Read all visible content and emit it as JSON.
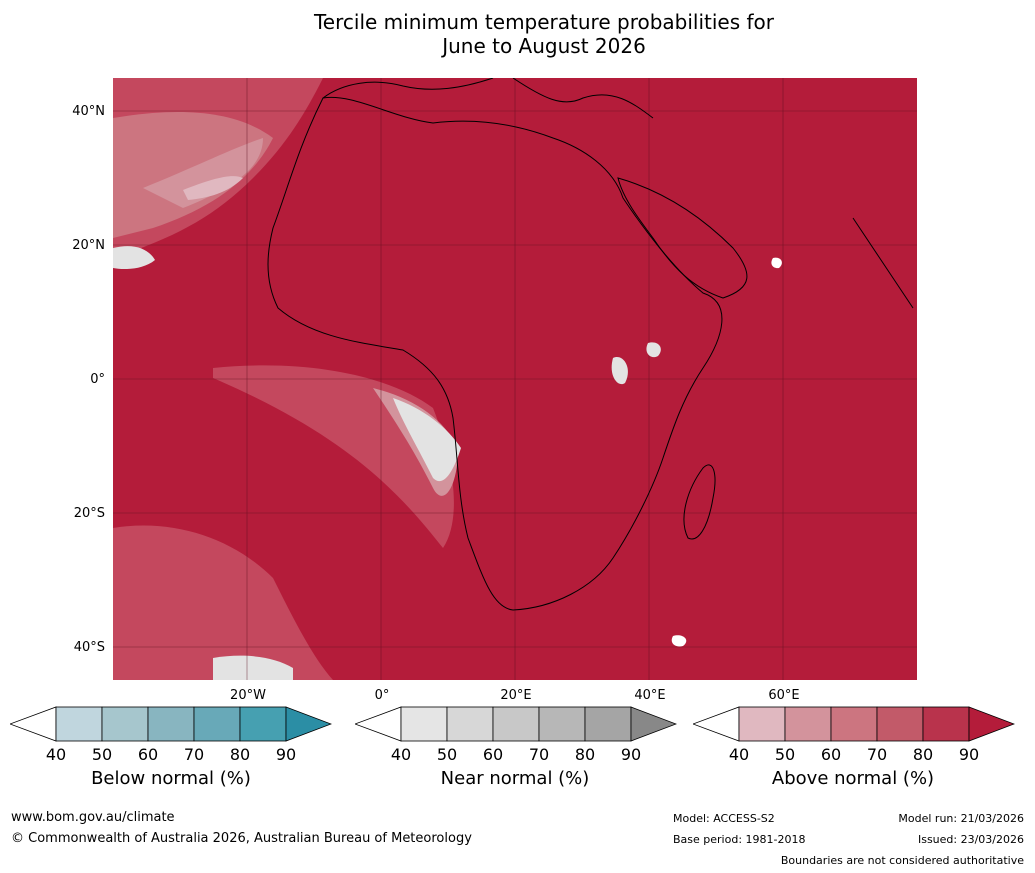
{
  "title_line1": "Tercile minimum temperature probabilities for",
  "title_line2": "June to August 2026",
  "map": {
    "region": "Africa",
    "lat_labels": [
      "40°N",
      "20°N",
      "0°",
      "20°S",
      "40°S"
    ],
    "lon_labels": [
      "20°W",
      "0°",
      "20°E",
      "40°E",
      "60°E"
    ],
    "background_color": "#b41c3a",
    "landmass_colors": [
      "#b41c3a",
      "#c4485e",
      "#cc7580",
      "#d3939c",
      "#e0b8c0",
      "#e3e3e3"
    ]
  },
  "colorbars": [
    {
      "title": "Below normal (%)",
      "ticks": [
        "40",
        "50",
        "60",
        "70",
        "80",
        "90"
      ],
      "colors": [
        "#c0d6de",
        "#a6c6cd",
        "#88b5c0",
        "#68a9b8",
        "#46a0b1",
        "#2b8ea5"
      ]
    },
    {
      "title": "Near normal (%)",
      "ticks": [
        "40",
        "50",
        "60",
        "70",
        "80",
        "90"
      ],
      "colors": [
        "#e5e5e5",
        "#d7d7d7",
        "#c8c8c8",
        "#b7b7b7",
        "#a5a5a5",
        "#888888"
      ]
    },
    {
      "title": "Above normal (%)",
      "ticks": [
        "40",
        "50",
        "60",
        "70",
        "80",
        "90"
      ],
      "colors": [
        "#e0b8c0",
        "#d3939c",
        "#cc7580",
        "#c25a69",
        "#b9334c",
        "#b41c3a"
      ]
    }
  ],
  "footer": {
    "website": "www.bom.gov.au/climate",
    "copyright": "© Commonwealth of Australia 2026, Australian Bureau of Meteorology",
    "model": "Model: ACCESS-S2",
    "base_period": "Base period: 1981-2018",
    "model_run": "Model run: 21/03/2026",
    "issued": "Issued: 23/03/2026",
    "boundaries": "Boundaries are not considered authoritative"
  }
}
